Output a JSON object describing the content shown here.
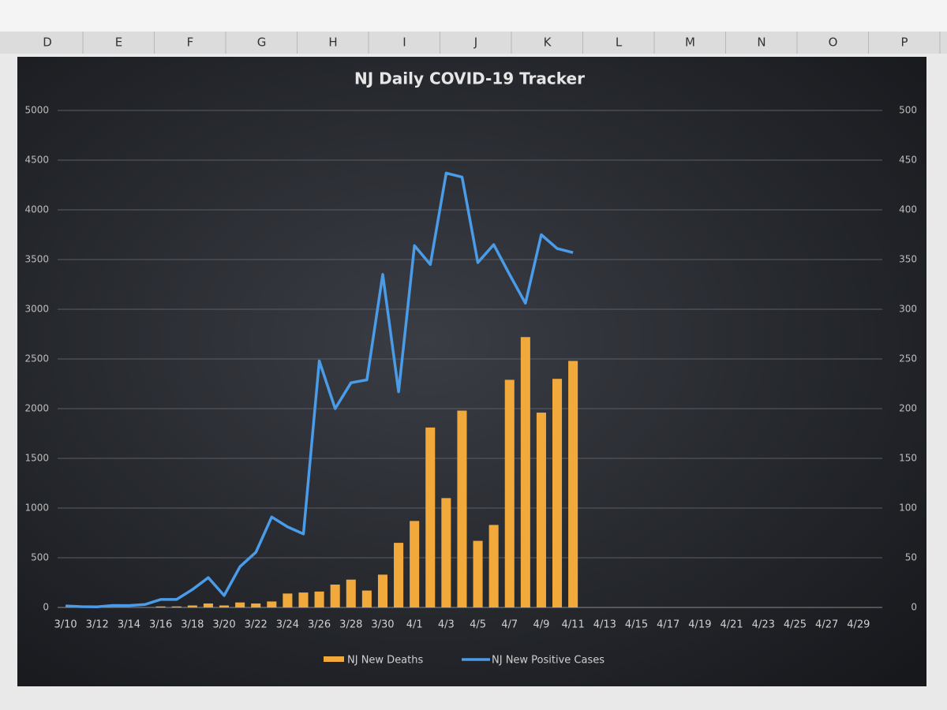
{
  "columns": [
    "D",
    "E",
    "F",
    "G",
    "H",
    "I",
    "J",
    "K",
    "L",
    "M",
    "N",
    "O",
    "P"
  ],
  "chart_data": {
    "type": "combo",
    "title": "NJ Daily COVID-19 Tracker",
    "categories": [
      "3/10",
      null,
      "3/12",
      null,
      "3/14",
      null,
      "3/16",
      null,
      "3/18",
      null,
      "3/20",
      null,
      "3/22",
      null,
      "3/24",
      null,
      "3/26",
      null,
      "3/28",
      null,
      "3/30",
      null,
      "4/1",
      null,
      "4/3",
      null,
      "4/5",
      null,
      "4/7",
      null,
      "4/9",
      null,
      "4/11",
      null,
      "4/13",
      null,
      "4/15",
      null,
      "4/17",
      null,
      "4/19",
      null,
      "4/21",
      null,
      "4/23",
      null,
      "4/25",
      null,
      "4/27",
      null,
      "4/29",
      null
    ],
    "series": [
      {
        "name": "NJ New Deaths",
        "type": "bar",
        "axis": "y2",
        "color": "#f2a93b",
        "values": [
          0,
          1,
          0,
          0,
          0,
          0,
          1,
          1,
          2,
          4,
          2,
          5,
          4,
          6,
          14,
          15,
          16,
          23,
          28,
          17,
          33,
          65,
          87,
          181,
          110,
          198,
          67,
          83,
          229,
          272,
          196,
          230,
          248,
          null,
          null,
          null,
          null,
          null,
          null,
          null,
          null,
          null,
          null,
          null,
          null,
          null,
          null,
          null,
          null,
          null,
          null,
          null
        ]
      },
      {
        "name": "NJ New Positive Cases",
        "type": "line",
        "axis": "y",
        "color": "#4a9be8",
        "values": [
          15,
          8,
          6,
          20,
          19,
          29,
          80,
          80,
          180,
          300,
          120,
          410,
          555,
          910,
          810,
          740,
          2480,
          2000,
          2260,
          2290,
          3350,
          2170,
          3640,
          3450,
          4370,
          4330,
          3470,
          3650,
          3350,
          3060,
          3750,
          3610,
          3570,
          null,
          null,
          null,
          null,
          null,
          null,
          null,
          null,
          null,
          null,
          null,
          null,
          null,
          null,
          null,
          null,
          null,
          null,
          null
        ]
      }
    ],
    "ylim": [
      0,
      5000
    ],
    "yticks": [
      0,
      500,
      1000,
      1500,
      2000,
      2500,
      3000,
      3500,
      4000,
      4500,
      5000
    ],
    "y2lim": [
      0,
      500
    ],
    "y2ticks": [
      0,
      50,
      100,
      150,
      200,
      250,
      300,
      350,
      400,
      450,
      500
    ],
    "grid": true,
    "legend": "bottom"
  }
}
